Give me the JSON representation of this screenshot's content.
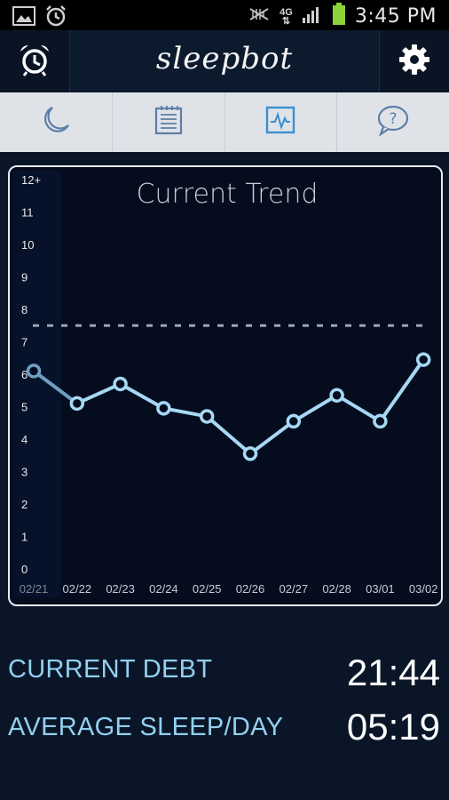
{
  "status_bar": {
    "time": "3:45 PM",
    "network": "4G",
    "icons": [
      "image-icon",
      "alarm-icon",
      "mute-icon",
      "signal-icon",
      "battery-icon"
    ]
  },
  "app_bar": {
    "title": "sleepbot",
    "left_icon": "alarm-clock-icon",
    "right_icon": "gear-icon"
  },
  "tabs": [
    {
      "icon": "moon-icon",
      "active": false
    },
    {
      "icon": "log-icon",
      "active": false
    },
    {
      "icon": "trend-icon",
      "active": true
    },
    {
      "icon": "help-icon",
      "active": false
    }
  ],
  "chart_data": {
    "type": "line",
    "title": "Current Trend",
    "y_ticks": [
      "0",
      "1",
      "2",
      "3",
      "4",
      "5",
      "6",
      "7",
      "8",
      "9",
      "10",
      "11",
      "12+"
    ],
    "ylim": [
      0,
      12
    ],
    "x": [
      "02/21",
      "02/22",
      "02/23",
      "02/24",
      "02/25",
      "02/26",
      "02/27",
      "02/28",
      "03/01",
      "03/02"
    ],
    "values": [
      6.1,
      5.1,
      5.7,
      4.95,
      4.7,
      3.55,
      4.55,
      5.35,
      4.55,
      6.45
    ],
    "goal_line": 7.5,
    "grid": false,
    "line_color": "#a6d8f4",
    "goal_color": "#9aa6b4"
  },
  "stats": [
    {
      "label": "CURRENT DEBT",
      "value": "21:44"
    },
    {
      "label": "AVERAGE SLEEP/DAY",
      "value": "05:19"
    }
  ],
  "colors": {
    "background": "#0a1628",
    "chart_bg": "#040c1e",
    "accent": "#93cfee",
    "tab_bar": "#dfe3e8",
    "tab_icon": "#5b7fa6",
    "tab_icon_active": "#3c8fd0"
  }
}
